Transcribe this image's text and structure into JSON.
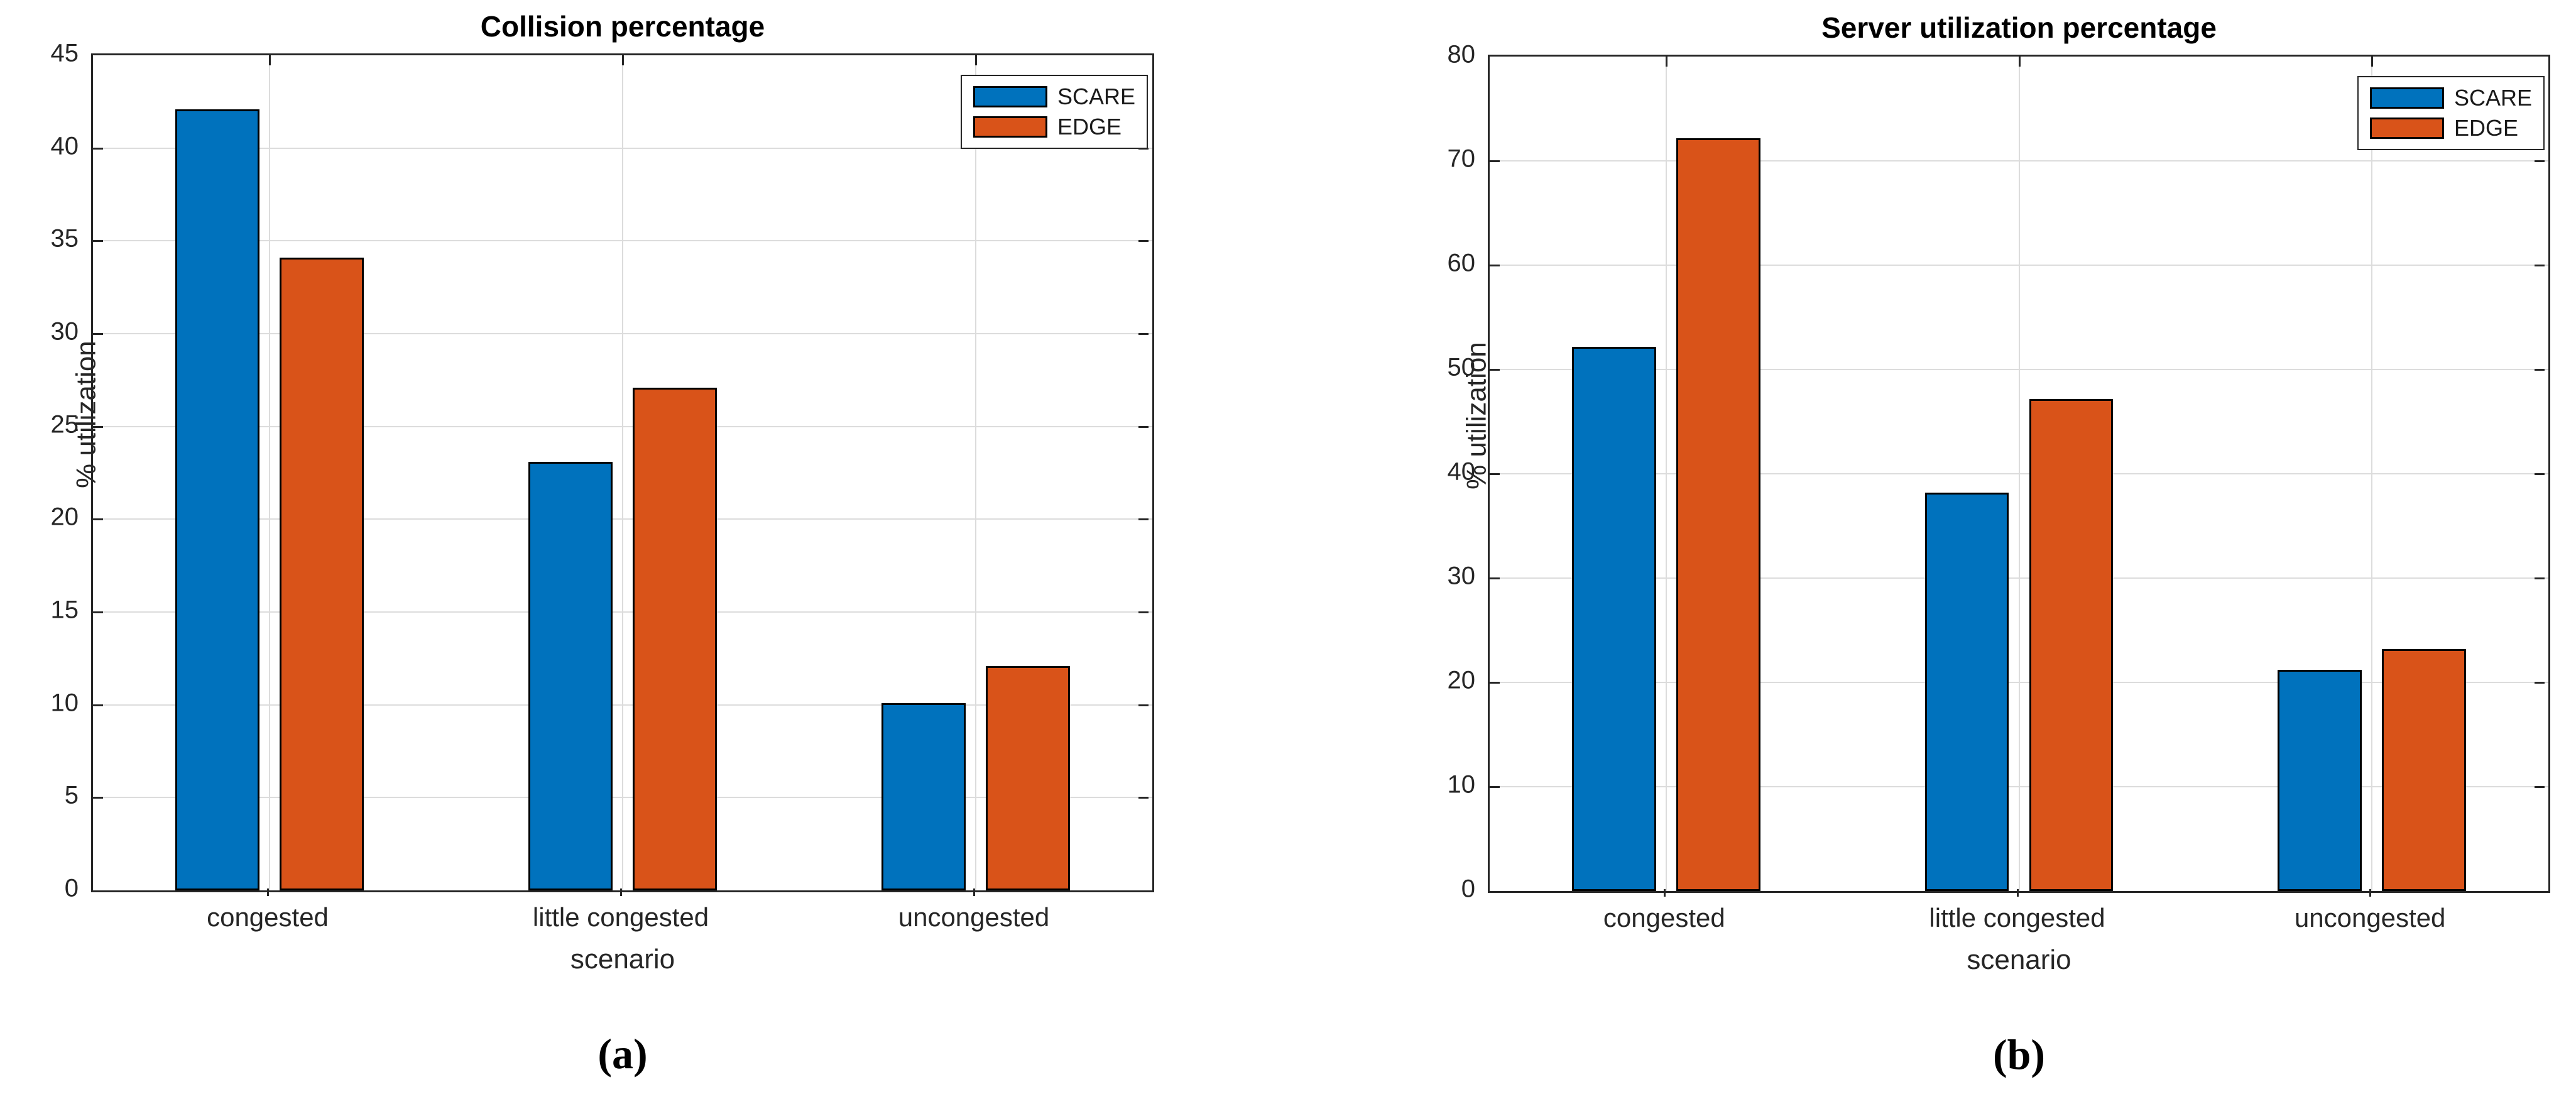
{
  "colors": {
    "scare_blue": "#0072BD",
    "edge_orange": "#D95319",
    "grid": "#DCDCDC",
    "axis": "#262626",
    "bar_border": "#000000"
  },
  "chart_data": [
    {
      "type": "bar",
      "title": "Collision percentage",
      "xlabel": "scenario",
      "ylabel": "% utilization",
      "categories": [
        "congested",
        "little congested",
        "uncongested"
      ],
      "series": [
        {
          "name": "SCARE",
          "color": "#0072BD",
          "values": [
            42,
            23,
            10
          ]
        },
        {
          "name": "EDGE",
          "color": "#D95319",
          "values": [
            34,
            27,
            12
          ]
        }
      ],
      "ylim": [
        0,
        45
      ],
      "ytick_step": 5,
      "grid": true,
      "legend_position": "top-right",
      "caption": "(a)"
    },
    {
      "type": "bar",
      "title": "Server utilization percentage",
      "xlabel": "scenario",
      "ylabel": "% utilization",
      "categories": [
        "congested",
        "little congested",
        "uncongested"
      ],
      "series": [
        {
          "name": "SCARE",
          "color": "#0072BD",
          "values": [
            52,
            38,
            21
          ]
        },
        {
          "name": "EDGE",
          "color": "#D95319",
          "values": [
            72,
            47,
            23
          ]
        }
      ],
      "ylim": [
        0,
        80
      ],
      "ytick_step": 10,
      "grid": true,
      "legend_position": "top-right",
      "caption": "(b)"
    }
  ]
}
